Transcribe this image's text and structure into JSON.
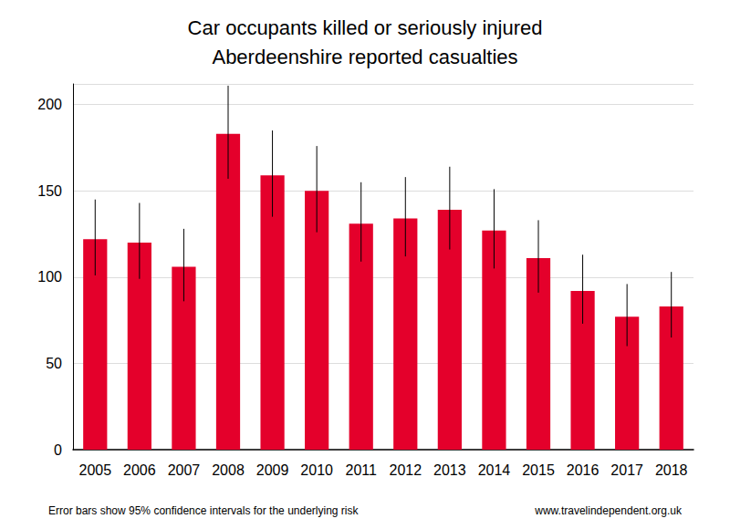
{
  "chart_data": {
    "type": "bar",
    "title": "Car occupants killed or seriously injured",
    "subtitle": "Aberdeenshire reported casualties",
    "footnote": "Error bars show 95% confidence intervals for the underlying risk",
    "source": "www.travelindependent.org.uk",
    "categories": [
      "2005",
      "2006",
      "2007",
      "2008",
      "2009",
      "2010",
      "2011",
      "2012",
      "2013",
      "2014",
      "2015",
      "2016",
      "2017",
      "2018"
    ],
    "values": [
      122,
      120,
      106,
      183,
      159,
      150,
      131,
      134,
      139,
      127,
      111,
      92,
      77,
      83
    ],
    "error_low": [
      101,
      99,
      86,
      157,
      135,
      126,
      109,
      112,
      116,
      105,
      91,
      73,
      60,
      65
    ],
    "error_high": [
      145,
      143,
      128,
      211,
      185,
      176,
      155,
      158,
      164,
      151,
      133,
      113,
      96,
      103
    ],
    "color": "#e4002b",
    "ylim": [
      0,
      212
    ],
    "yticks": [
      0,
      50,
      100,
      150,
      200
    ],
    "grid": true
  }
}
